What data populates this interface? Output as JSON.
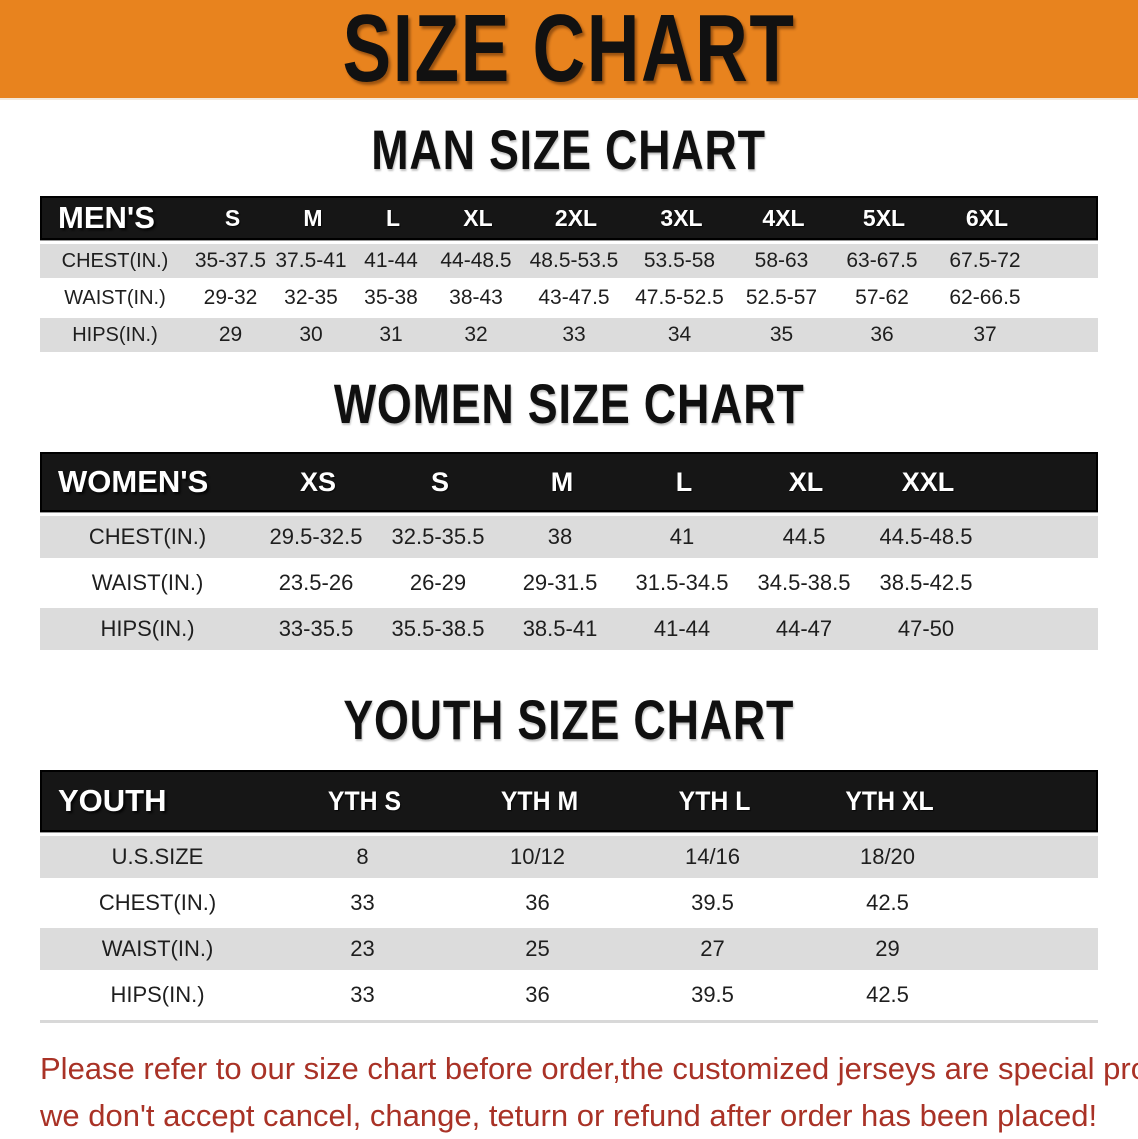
{
  "banner": {
    "title": "SIZE CHART"
  },
  "colors": {
    "banner_orange": "#E8831E",
    "header_bar": "#161616",
    "row_gray": "#DCDCDC",
    "disclaimer_red": "#A93226"
  },
  "tables": {
    "men": {
      "heading": "MAN SIZE CHART",
      "header_label": "MEN'S",
      "sizes": [
        "S",
        "M",
        "L",
        "XL",
        "2XL",
        "3XL",
        "4XL",
        "5XL",
        "6XL"
      ],
      "rows": [
        {
          "label": "CHEST(IN.)",
          "values": [
            "35-37.5",
            "37.5-41",
            "41-44",
            "44-48.5",
            "48.5-53.5",
            "53.5-58",
            "58-63",
            "63-67.5",
            "67.5-72"
          ]
        },
        {
          "label": "WAIST(IN.)",
          "values": [
            "29-32",
            "32-35",
            "35-38",
            "38-43",
            "43-47.5",
            "47.5-52.5",
            "52.5-57",
            "57-62",
            "62-66.5"
          ]
        },
        {
          "label": "HIPS(IN.)",
          "values": [
            "29",
            "30",
            "31",
            "32",
            "33",
            "34",
            "35",
            "36",
            "37"
          ]
        }
      ]
    },
    "women": {
      "heading": "WOMEN SIZE CHART",
      "header_label": "WOMEN'S",
      "sizes": [
        "XS",
        "S",
        "M",
        "L",
        "XL",
        "XXL"
      ],
      "rows": [
        {
          "label": "CHEST(IN.)",
          "values": [
            "29.5-32.5",
            "32.5-35.5",
            "38",
            "41",
            "44.5",
            "44.5-48.5"
          ]
        },
        {
          "label": "WAIST(IN.)",
          "values": [
            "23.5-26",
            "26-29",
            "29-31.5",
            "31.5-34.5",
            "34.5-38.5",
            "38.5-42.5"
          ]
        },
        {
          "label": "HIPS(IN.)",
          "values": [
            "33-35.5",
            "35.5-38.5",
            "38.5-41",
            "41-44",
            "44-47",
            "47-50"
          ]
        }
      ]
    },
    "youth": {
      "heading": "YOUTH SIZE CHART",
      "header_label": "YOUTH",
      "sizes": [
        "YTH S",
        "YTH M",
        "YTH L",
        "YTH XL"
      ],
      "rows": [
        {
          "label": "U.S.SIZE",
          "values": [
            "8",
            "10/12",
            "14/16",
            "18/20"
          ]
        },
        {
          "label": "CHEST(IN.)",
          "values": [
            "33",
            "36",
            "39.5",
            "42.5"
          ]
        },
        {
          "label": "WAIST(IN.)",
          "values": [
            "23",
            "25",
            "27",
            "29"
          ]
        },
        {
          "label": "HIPS(IN.)",
          "values": [
            "33",
            "36",
            "39.5",
            "42.5"
          ]
        }
      ]
    }
  },
  "disclaimer": {
    "line1": "Please refer to our size chart before order,the customized jerseys are special products,",
    "line2": "we don't accept cancel, change, teturn or refund after order has been placed!"
  }
}
